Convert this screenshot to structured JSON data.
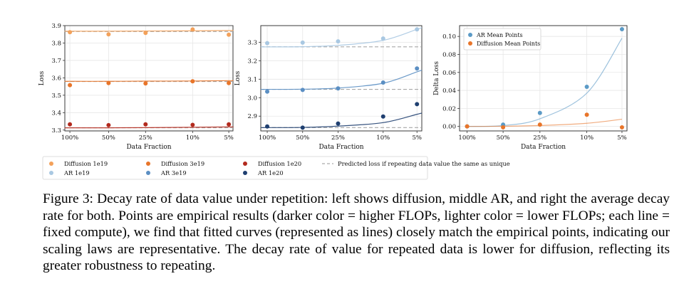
{
  "chart_data": [
    {
      "type": "scatter",
      "panel": "left",
      "title": "",
      "xlabel": "Data Fraction",
      "ylabel": "Loss",
      "xtick_labels": [
        "100%",
        "50%",
        "25%",
        "10%",
        "5%"
      ],
      "ytick_labels": [
        "3.3",
        "3.4",
        "3.5",
        "3.6",
        "3.7",
        "3.8",
        "3.9"
      ],
      "ylim": [
        3.295,
        3.9
      ],
      "grid": true,
      "series": [
        {
          "name": "Diffusion 1e19",
          "color": "#f3a15a",
          "values": [
            3.862,
            3.85,
            3.858,
            3.878,
            3.848
          ],
          "fit": [
            3.868,
            3.868,
            3.869,
            3.87,
            3.872
          ]
        },
        {
          "name": "Diffusion 3e19",
          "color": "#e8752a",
          "values": [
            3.558,
            3.57,
            3.568,
            3.58,
            3.57
          ],
          "fit": [
            3.58,
            3.58,
            3.581,
            3.582,
            3.584
          ]
        },
        {
          "name": "Diffusion 1e20",
          "color": "#b22a1e",
          "values": [
            3.333,
            3.328,
            3.333,
            3.33,
            3.333
          ],
          "fit": [
            3.313,
            3.313,
            3.314,
            3.316,
            3.318
          ]
        }
      ],
      "reference_lines": [
        3.866,
        3.579,
        3.313
      ]
    },
    {
      "type": "scatter",
      "panel": "middle",
      "title": "",
      "xlabel": "Data Fraction",
      "ylabel": "Loss",
      "xtick_labels": [
        "100%",
        "50%",
        "25%",
        "10%",
        "5%"
      ],
      "ytick_labels": [
        "2.9",
        "3.0",
        "3.1",
        "3.2",
        "3.3"
      ],
      "ylim": [
        2.82,
        3.39
      ],
      "grid": true,
      "series": [
        {
          "name": "AR 1e19",
          "color": "#a9c8e2",
          "values": [
            3.295,
            3.298,
            3.305,
            3.32,
            3.37
          ],
          "fit": [
            3.275,
            3.276,
            3.283,
            3.31,
            3.37
          ]
        },
        {
          "name": "AR 3e19",
          "color": "#5b8fc3",
          "values": [
            3.033,
            3.042,
            3.05,
            3.082,
            3.158
          ],
          "fit": [
            3.045,
            3.046,
            3.052,
            3.078,
            3.14
          ]
        },
        {
          "name": "AR 1e20",
          "color": "#1f3f70",
          "values": [
            2.844,
            2.838,
            2.86,
            2.898,
            2.965
          ],
          "fit": [
            2.838,
            2.839,
            2.846,
            2.865,
            2.91
          ]
        }
      ],
      "reference_lines": [
        3.275,
        3.045,
        2.838
      ]
    },
    {
      "type": "scatter",
      "panel": "right",
      "title": "",
      "xlabel": "Data Fraction",
      "ylabel": "Delta Loss",
      "xtick_labels": [
        "100%",
        "50%",
        "25%",
        "10%",
        "5%"
      ],
      "ytick_labels": [
        "0.00",
        "0.02",
        "0.04",
        "0.06",
        "0.08",
        "0.10"
      ],
      "ylim": [
        -0.005,
        0.112
      ],
      "grid": true,
      "legend_position": "top-left",
      "series": [
        {
          "name": "AR Mean Points",
          "color": "#5b9ac6",
          "values": [
            0.0,
            0.002,
            0.015,
            0.044,
            0.108
          ]
        },
        {
          "name": "Diffusion Mean Points",
          "color": "#e8752a",
          "values": [
            0.0,
            -0.001,
            0.002,
            0.013,
            -0.001
          ]
        }
      ]
    }
  ],
  "shared_legend": {
    "items": [
      {
        "label": "Diffusion 1e19",
        "color": "#f3a15a",
        "kind": "dot"
      },
      {
        "label": "Diffusion 3e19",
        "color": "#e8752a",
        "kind": "dot"
      },
      {
        "label": "Diffusion 1e20",
        "color": "#b22a1e",
        "kind": "dot"
      },
      {
        "label": "Predicted loss if repeating data value the same as unique",
        "color": "#aaaaaa",
        "kind": "dash"
      },
      {
        "label": "AR 1e19",
        "color": "#a9c8e2",
        "kind": "dot"
      },
      {
        "label": "AR 3e19",
        "color": "#5b8fc3",
        "kind": "dot"
      },
      {
        "label": "AR 1e20",
        "color": "#1f3f70",
        "kind": "dot"
      }
    ]
  },
  "caption": "Figure 3: Decay rate of data value under repetition: left shows diffusion, middle AR, and right the average decay rate for both. Points are empirical results (darker color = higher FLOPs, lighter color = lower FLOPs; each line = fixed compute), we find that fitted curves (represented as lines) closely match the empirical points, indicating our scaling laws are representative. The decay rate of value for repeated data is lower for diffusion, reflecting its greater robustness to repeating."
}
